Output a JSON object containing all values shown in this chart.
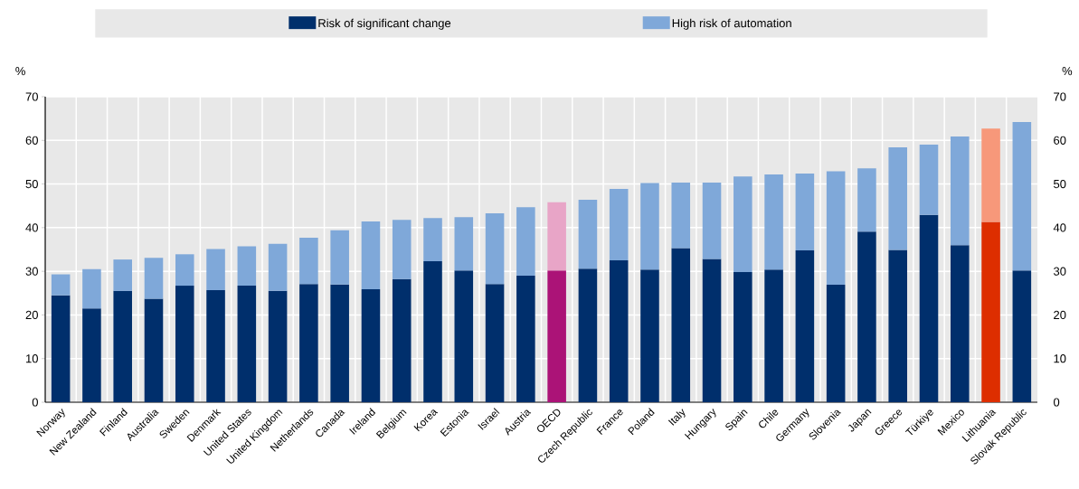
{
  "chart_data": {
    "type": "bar",
    "stacked": true,
    "ylabel": "%",
    "y2label": "%",
    "categories": [
      "Norway",
      "New Zealand",
      "Finland",
      "Australia",
      "Sweden",
      "Denmark",
      "United States",
      "United Kingdom",
      "Netherlands",
      "Canada",
      "Ireland",
      "Belgium",
      "Korea",
      "Estonia",
      "Israel",
      "Austria",
      "OECD",
      "Czech Republic",
      "France",
      "Poland",
      "Italy",
      "Hungary",
      "Spain",
      "Chile",
      "Germany",
      "Slovenia",
      "Japan",
      "Greece",
      "Türkiye",
      "Mexico",
      "Lithuania",
      "Slovak Republic"
    ],
    "series": [
      {
        "name": "Risk of significant change",
        "color": "#002f6c",
        "colors": [
          "#002f6c",
          "#002f6c",
          "#002f6c",
          "#002f6c",
          "#002f6c",
          "#002f6c",
          "#002f6c",
          "#002f6c",
          "#002f6c",
          "#002f6c",
          "#002f6c",
          "#002f6c",
          "#002f6c",
          "#002f6c",
          "#002f6c",
          "#002f6c",
          "#ab1377",
          "#002f6c",
          "#002f6c",
          "#002f6c",
          "#002f6c",
          "#002f6c",
          "#002f6c",
          "#002f6c",
          "#002f6c",
          "#002f6c",
          "#002f6c",
          "#002f6c",
          "#002f6c",
          "#002f6c",
          "#dd2e00",
          "#002f6c"
        ],
        "values": [
          24.5,
          21.5,
          25.5,
          23.7,
          26.7,
          25.7,
          26.7,
          25.5,
          27.1,
          27.0,
          25.9,
          28.2,
          32.3,
          30.2,
          27.1,
          29.0,
          30.2,
          30.6,
          32.5,
          30.4,
          35.3,
          32.8,
          29.8,
          30.4,
          34.8,
          26.9,
          39.1,
          34.9,
          42.9,
          36.0,
          41.3,
          30.2
        ]
      },
      {
        "name": "High risk of automation",
        "color": "#7fa8d9",
        "colors": [
          "#7fa8d9",
          "#7fa8d9",
          "#7fa8d9",
          "#7fa8d9",
          "#7fa8d9",
          "#7fa8d9",
          "#7fa8d9",
          "#7fa8d9",
          "#7fa8d9",
          "#7fa8d9",
          "#7fa8d9",
          "#7fa8d9",
          "#7fa8d9",
          "#7fa8d9",
          "#7fa8d9",
          "#7fa8d9",
          "#e8a5c7",
          "#7fa8d9",
          "#7fa8d9",
          "#7fa8d9",
          "#7fa8d9",
          "#7fa8d9",
          "#7fa8d9",
          "#7fa8d9",
          "#7fa8d9",
          "#7fa8d9",
          "#7fa8d9",
          "#7fa8d9",
          "#7fa8d9",
          "#7fa8d9",
          "#f7987a",
          "#7fa8d9"
        ],
        "values": [
          4.8,
          9.0,
          7.2,
          9.4,
          7.2,
          9.4,
          9.0,
          10.8,
          10.6,
          12.4,
          15.5,
          13.6,
          9.9,
          12.2,
          16.2,
          15.7,
          15.6,
          15.8,
          16.4,
          19.8,
          15.0,
          17.5,
          21.9,
          21.8,
          17.6,
          26.0,
          14.5,
          23.5,
          16.1,
          24.9,
          21.4,
          34.0
        ]
      }
    ],
    "ylim": [
      0,
      70
    ],
    "yticks": [
      0,
      10,
      20,
      30,
      40,
      50,
      60,
      70
    ],
    "y2lim": [
      0,
      70
    ],
    "y2ticks": [
      0,
      10,
      20,
      30,
      40,
      50,
      60,
      70
    ],
    "grid": true,
    "legend": "top"
  }
}
